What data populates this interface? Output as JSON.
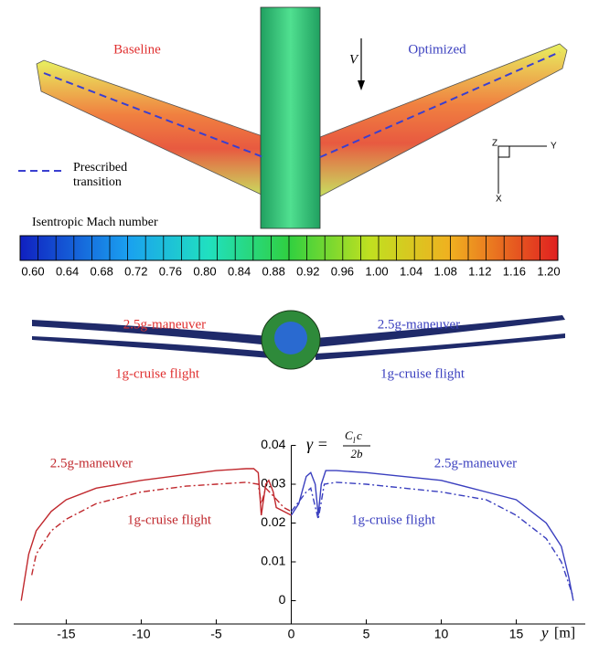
{
  "contour": {
    "left_label": "Baseline",
    "right_label": "Optimized",
    "velocity_label": "V",
    "legend_line1": "Prescribed",
    "legend_line2": "transition",
    "axis_z": "Z",
    "axis_y": "Y",
    "axis_x": "X"
  },
  "colorbar": {
    "title": "Isentropic Mach number",
    "tick_labels": [
      "0.60",
      "0.64",
      "0.68",
      "0.72",
      "0.76",
      "0.80",
      "0.84",
      "0.88",
      "0.92",
      "0.96",
      "1.00",
      "1.04",
      "1.08",
      "1.12",
      "1.16",
      "1.20"
    ]
  },
  "deformation": {
    "left_top": "2.5g-maneuver",
    "right_top": "2.5g-maneuver",
    "left_bottom": "1g-cruise flight",
    "right_bottom": "1g-cruise flight"
  },
  "chart_data": {
    "type": "line",
    "formula": {
      "lhs": "γ =",
      "num_c": "C",
      "num_sub": "l",
      "num_rest": " c",
      "den": "2b"
    },
    "xlabel": "y",
    "xunit": "[m]",
    "xlim": [
      -18.5,
      19.6
    ],
    "xticks": [
      -15,
      -10,
      -5,
      0,
      5,
      10,
      15
    ],
    "ylim": [
      -0.006,
      0.04
    ],
    "yticks": [
      0,
      0.01,
      0.02,
      0.03,
      0.04
    ],
    "series": [
      {
        "color": "#c0282d",
        "dash": "solid",
        "x": [
          -18,
          -17.5,
          -17,
          -16,
          -15,
          -13,
          -10,
          -7,
          -5,
          -3,
          -2.5,
          -2.2,
          -2,
          -1.7,
          -1.5,
          -1.2,
          -1,
          -0.5,
          0
        ],
        "values": [
          0,
          0.012,
          0.018,
          0.023,
          0.026,
          0.029,
          0.031,
          0.0325,
          0.0335,
          0.034,
          0.034,
          0.033,
          0.022,
          0.03,
          0.031,
          0.028,
          0.024,
          0.023,
          0.022
        ]
      },
      {
        "color": "#c0282d",
        "dash": "dashdot",
        "x": [
          -17.3,
          -17,
          -16,
          -15,
          -13,
          -10,
          -7,
          -5,
          -3,
          -2.2,
          -2,
          -1.7,
          -1.2,
          -0.5,
          0
        ],
        "values": [
          0.0066,
          0.012,
          0.018,
          0.021,
          0.025,
          0.028,
          0.0295,
          0.03,
          0.0305,
          0.03,
          0.025,
          0.029,
          0.027,
          0.024,
          0.023
        ]
      },
      {
        "color": "#3a3fbf",
        "dash": "solid",
        "x": [
          0,
          0.5,
          1,
          1.3,
          1.6,
          1.8,
          2,
          2.3,
          3,
          5,
          10,
          13,
          15,
          17,
          18,
          18.5,
          18.8
        ],
        "values": [
          0.022,
          0.025,
          0.032,
          0.033,
          0.03,
          0.022,
          0.03,
          0.0335,
          0.0335,
          0.033,
          0.031,
          0.028,
          0.026,
          0.02,
          0.014,
          0.006,
          0
        ]
      },
      {
        "color": "#3a3fbf",
        "dash": "dashdot",
        "x": [
          0,
          1,
          1.3,
          1.8,
          2.2,
          3,
          5,
          10,
          13,
          15,
          17,
          18,
          18.8
        ],
        "values": [
          0.023,
          0.028,
          0.029,
          0.021,
          0.03,
          0.0305,
          0.03,
          0.028,
          0.026,
          0.022,
          0.016,
          0.01,
          0.001
        ]
      }
    ],
    "annotations": [
      {
        "text": "2.5g-maneuver",
        "color": "#c0282d"
      },
      {
        "text": "1g-cruise flight",
        "color": "#c0282d"
      },
      {
        "text": "2.5g-maneuver",
        "color": "#3a3fbf"
      },
      {
        "text": "1g-cruise flight",
        "color": "#3a3fbf"
      }
    ]
  }
}
